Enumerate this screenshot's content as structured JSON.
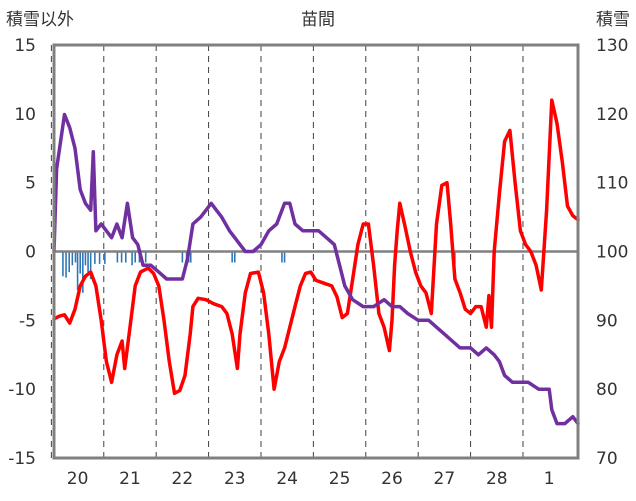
{
  "chart_data": {
    "type": "line",
    "title": "苗間",
    "left_axis_label": "積雪以外",
    "right_axis_label": "積雪",
    "x_tick_labels": [
      "20",
      "21",
      "22",
      "23",
      "24",
      "25",
      "26",
      "27",
      "28",
      "1"
    ],
    "left_axis": {
      "ylim": [
        -15,
        15
      ],
      "ticks": [
        "15",
        "10",
        "5",
        "0",
        "-5",
        "-10",
        "-15"
      ]
    },
    "right_axis": {
      "ylim": [
        70,
        130
      ],
      "ticks": [
        "130",
        "120",
        "110",
        "100",
        "90",
        "80",
        "70"
      ]
    },
    "x_range": [
      19.55,
      29.55
    ],
    "grid": {
      "vertical": "dashed",
      "horizontal": "none"
    },
    "colors": {
      "temperature": "#ff0000",
      "snow_depth": "#7030a0",
      "precipitation": "#2e75b6",
      "axis": "#808080",
      "zero_line": "#808080"
    },
    "series": [
      {
        "kind": "line",
        "axis": "left",
        "color": "#ff0000",
        "points": [
          [
            19.55,
            -4.9
          ],
          [
            19.65,
            -4.7
          ],
          [
            19.75,
            -4.6
          ],
          [
            19.85,
            -5.2
          ],
          [
            19.95,
            -4.2
          ],
          [
            20.05,
            -2.5
          ],
          [
            20.15,
            -1.8
          ],
          [
            20.25,
            -1.5
          ],
          [
            20.35,
            -2.5
          ],
          [
            20.45,
            -5
          ],
          [
            20.55,
            -8
          ],
          [
            20.65,
            -9.5
          ],
          [
            20.75,
            -7.5
          ],
          [
            20.85,
            -6.5
          ],
          [
            20.9,
            -8.5
          ],
          [
            21.0,
            -5.5
          ],
          [
            21.1,
            -2.5
          ],
          [
            21.2,
            -1.5
          ],
          [
            21.35,
            -1.2
          ],
          [
            21.45,
            -1.6
          ],
          [
            21.55,
            -2.5
          ],
          [
            21.65,
            -5
          ],
          [
            21.75,
            -8
          ],
          [
            21.85,
            -10.3
          ],
          [
            21.95,
            -10.1
          ],
          [
            22.05,
            -9
          ],
          [
            22.15,
            -6
          ],
          [
            22.2,
            -4
          ],
          [
            22.3,
            -3.4
          ],
          [
            22.45,
            -3.5
          ],
          [
            22.6,
            -3.8
          ],
          [
            22.75,
            -4
          ],
          [
            22.85,
            -4.5
          ],
          [
            22.95,
            -6
          ],
          [
            23.05,
            -8.5
          ],
          [
            23.1,
            -6
          ],
          [
            23.2,
            -3
          ],
          [
            23.3,
            -1.6
          ],
          [
            23.45,
            -1.5
          ],
          [
            23.55,
            -3
          ],
          [
            23.65,
            -6
          ],
          [
            23.75,
            -10
          ],
          [
            23.85,
            -8
          ],
          [
            23.95,
            -7
          ],
          [
            24.05,
            -5.5
          ],
          [
            24.15,
            -4
          ],
          [
            24.25,
            -2.5
          ],
          [
            24.35,
            -1.6
          ],
          [
            24.45,
            -1.5
          ],
          [
            24.55,
            -2.1
          ],
          [
            24.7,
            -2.3
          ],
          [
            24.85,
            -2.5
          ],
          [
            24.95,
            -3.3
          ],
          [
            25.05,
            -4.8
          ],
          [
            25.15,
            -4.5
          ],
          [
            25.25,
            -2
          ],
          [
            25.35,
            0.5
          ],
          [
            25.45,
            2
          ],
          [
            25.55,
            2
          ],
          [
            25.65,
            -1
          ],
          [
            25.75,
            -4.5
          ],
          [
            25.85,
            -5.5
          ],
          [
            25.95,
            -7.2
          ],
          [
            26.0,
            -5
          ],
          [
            26.05,
            -1
          ],
          [
            26.1,
            1.5
          ],
          [
            26.15,
            3.5
          ],
          [
            26.25,
            1.8
          ],
          [
            26.35,
            0
          ],
          [
            26.45,
            -1.5
          ],
          [
            26.55,
            -2.5
          ],
          [
            26.65,
            -3
          ],
          [
            26.75,
            -4.5
          ],
          [
            26.85,
            2
          ],
          [
            26.95,
            4.8
          ],
          [
            27.05,
            5
          ],
          [
            27.12,
            2
          ],
          [
            27.2,
            -2
          ],
          [
            27.3,
            -3
          ],
          [
            27.4,
            -4.2
          ],
          [
            27.5,
            -4.5
          ],
          [
            27.6,
            -4
          ],
          [
            27.7,
            -4
          ],
          [
            27.8,
            -5.5
          ],
          [
            27.85,
            -3.2
          ],
          [
            27.9,
            -5.5
          ],
          [
            27.95,
            0
          ],
          [
            28.05,
            4.2
          ],
          [
            28.15,
            8
          ],
          [
            28.25,
            8.8
          ],
          [
            28.35,
            5
          ],
          [
            28.45,
            1.5
          ],
          [
            28.55,
            0.5
          ],
          [
            28.65,
            0
          ],
          [
            28.75,
            -1
          ],
          [
            28.85,
            -2.8
          ],
          [
            28.95,
            3
          ],
          [
            29.05,
            11
          ],
          [
            29.15,
            9.3
          ],
          [
            29.25,
            6.5
          ],
          [
            29.35,
            3.3
          ],
          [
            29.45,
            2.6
          ],
          [
            29.55,
            2.3
          ]
        ]
      },
      {
        "kind": "line",
        "axis": "right",
        "color": "#7030a0",
        "points": [
          [
            19.55,
            100
          ],
          [
            19.6,
            112
          ],
          [
            19.75,
            119.9
          ],
          [
            19.85,
            118
          ],
          [
            19.95,
            115
          ],
          [
            20.05,
            109
          ],
          [
            20.15,
            107
          ],
          [
            20.25,
            106
          ],
          [
            20.3,
            114.5
          ],
          [
            20.35,
            103
          ],
          [
            20.45,
            104
          ],
          [
            20.55,
            103
          ],
          [
            20.65,
            102
          ],
          [
            20.75,
            104
          ],
          [
            20.85,
            102
          ],
          [
            20.95,
            107
          ],
          [
            21.05,
            102
          ],
          [
            21.15,
            101
          ],
          [
            21.25,
            98
          ],
          [
            21.4,
            98
          ],
          [
            21.55,
            97
          ],
          [
            21.7,
            96
          ],
          [
            21.85,
            96
          ],
          [
            22.0,
            96
          ],
          [
            22.1,
            99
          ],
          [
            22.2,
            104
          ],
          [
            22.35,
            105
          ],
          [
            22.45,
            106
          ],
          [
            22.55,
            107
          ],
          [
            22.65,
            106
          ],
          [
            22.75,
            105
          ],
          [
            22.9,
            103
          ],
          [
            23.0,
            102
          ],
          [
            23.1,
            101
          ],
          [
            23.2,
            100
          ],
          [
            23.35,
            100
          ],
          [
            23.5,
            101
          ],
          [
            23.65,
            103
          ],
          [
            23.8,
            104
          ],
          [
            23.95,
            107
          ],
          [
            24.05,
            107
          ],
          [
            24.15,
            104
          ],
          [
            24.3,
            103
          ],
          [
            24.45,
            103
          ],
          [
            24.6,
            103
          ],
          [
            24.75,
            102
          ],
          [
            24.9,
            101
          ],
          [
            25.0,
            98
          ],
          [
            25.1,
            95
          ],
          [
            25.25,
            93
          ],
          [
            25.45,
            92
          ],
          [
            25.65,
            92
          ],
          [
            25.85,
            93
          ],
          [
            26.0,
            92
          ],
          [
            26.15,
            92
          ],
          [
            26.3,
            91
          ],
          [
            26.5,
            90
          ],
          [
            26.7,
            90
          ],
          [
            26.85,
            89
          ],
          [
            27.0,
            88
          ],
          [
            27.15,
            87
          ],
          [
            27.3,
            86
          ],
          [
            27.5,
            86
          ],
          [
            27.65,
            85
          ],
          [
            27.8,
            86
          ],
          [
            27.95,
            85
          ],
          [
            28.05,
            84
          ],
          [
            28.15,
            82
          ],
          [
            28.3,
            81
          ],
          [
            28.45,
            81
          ],
          [
            28.6,
            81
          ],
          [
            28.8,
            80
          ],
          [
            29.0,
            80
          ],
          [
            29.05,
            77
          ],
          [
            29.15,
            75
          ],
          [
            29.3,
            75
          ],
          [
            29.45,
            76
          ],
          [
            29.55,
            75
          ]
        ]
      },
      {
        "kind": "bar",
        "axis": "left",
        "color": "#2e75b6",
        "width": 0.03,
        "bars": [
          [
            19.72,
            -1.8
          ],
          [
            19.78,
            -1.9
          ],
          [
            19.84,
            -1.5
          ],
          [
            19.9,
            -1.0
          ],
          [
            19.96,
            -0.8
          ],
          [
            20.0,
            -2.8
          ],
          [
            20.05,
            -1.6
          ],
          [
            20.1,
            -3.0
          ],
          [
            20.15,
            -1.0
          ],
          [
            20.2,
            -1.5
          ],
          [
            20.25,
            -2.0
          ],
          [
            20.33,
            -0.9
          ],
          [
            20.42,
            -0.9
          ],
          [
            20.52,
            -0.9
          ],
          [
            20.76,
            -0.8
          ],
          [
            20.84,
            -0.8
          ],
          [
            20.92,
            -0.8
          ],
          [
            21.04,
            -1.0
          ],
          [
            21.1,
            -0.8
          ],
          [
            21.18,
            -0.8
          ],
          [
            21.3,
            -0.8
          ],
          [
            22.0,
            -0.8
          ],
          [
            22.08,
            -0.9
          ],
          [
            22.12,
            -0.8
          ],
          [
            22.16,
            -0.8
          ],
          [
            22.95,
            -0.8
          ],
          [
            23.0,
            -0.8
          ],
          [
            23.9,
            -0.8
          ],
          [
            23.95,
            -0.8
          ],
          [
            27.2,
            -0.9
          ]
        ]
      }
    ]
  }
}
